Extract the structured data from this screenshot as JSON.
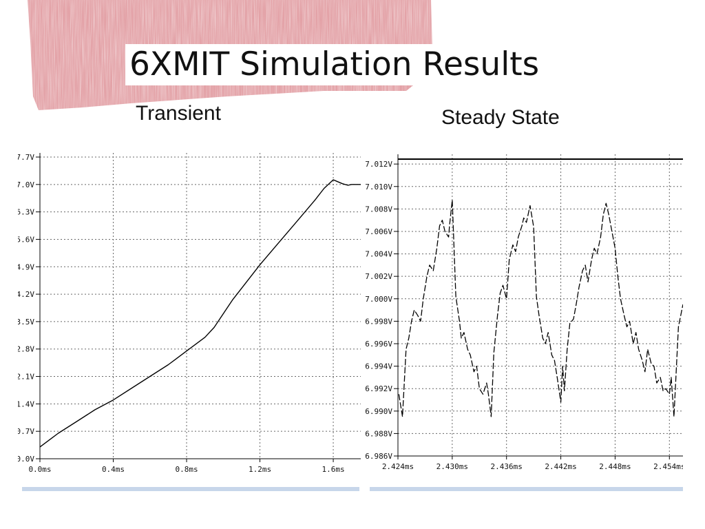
{
  "slide": {
    "title": "6XMIT Simulation Results",
    "subtitles": [
      "Transient",
      "Steady State"
    ],
    "accent_color": "#d65a62",
    "trace_color": "#000000",
    "grid_color": "#666666"
  },
  "chart_data": [
    {
      "type": "line",
      "title": "Transient",
      "xlabel": "",
      "ylabel": "",
      "x_unit": "ms",
      "y_unit": "V",
      "xlim": [
        0,
        1.75
      ],
      "ylim": [
        0,
        7.7
      ],
      "x_ticks": [
        0,
        0.4,
        0.8,
        1.2,
        1.6
      ],
      "x_tick_labels": [
        "0.0ms",
        "0.4ms",
        "0.8ms",
        "1.2ms",
        "1.6ms"
      ],
      "y_ticks": [
        0,
        0.7,
        1.4,
        2.1,
        2.8,
        3.5,
        4.2,
        4.9,
        5.6,
        6.3,
        7.0,
        7.7
      ],
      "y_tick_labels": [
        "0.0V",
        "0.7V",
        "1.4V",
        "2.1V",
        "2.8V",
        "3.5V",
        "4.2V",
        "4.9V",
        "5.6V",
        "6.3V",
        "7.0V",
        "7.7V"
      ],
      "grid": true,
      "series": [
        {
          "x": [
            0.0,
            0.1,
            0.2,
            0.3,
            0.4,
            0.5,
            0.6,
            0.7,
            0.8,
            0.9,
            0.95,
            1.0,
            1.05,
            1.1,
            1.2,
            1.3,
            1.4,
            1.5,
            1.55,
            1.6,
            1.62,
            1.65,
            1.68,
            1.7,
            1.75
          ],
          "y": [
            0.3,
            0.65,
            0.95,
            1.25,
            1.5,
            1.8,
            2.1,
            2.4,
            2.75,
            3.1,
            3.35,
            3.7,
            4.05,
            4.35,
            4.95,
            5.5,
            6.05,
            6.6,
            6.9,
            7.12,
            7.08,
            7.02,
            6.98,
            7.0,
            7.0
          ]
        }
      ]
    },
    {
      "type": "line",
      "title": "Steady State",
      "xlabel": "",
      "ylabel": "",
      "x_unit": "ms",
      "y_unit": "V",
      "xlim": [
        2.424,
        2.4555
      ],
      "ylim": [
        6.986,
        7.0125
      ],
      "x_ticks": [
        2.424,
        2.43,
        2.436,
        2.442,
        2.448,
        2.454
      ],
      "x_tick_labels": [
        "2.424ms",
        "2.430ms",
        "2.436ms",
        "2.442ms",
        "2.448ms",
        "2.454ms"
      ],
      "y_ticks": [
        6.986,
        6.988,
        6.99,
        6.992,
        6.994,
        6.996,
        6.998,
        7.0,
        7.002,
        7.004,
        7.006,
        7.008,
        7.01,
        7.012
      ],
      "y_tick_labels": [
        "6.986V",
        "6.988V",
        "6.990V",
        "6.992V",
        "6.994V",
        "6.996V",
        "6.998V",
        "7.000V",
        "7.002V",
        "7.004V",
        "7.006V",
        "7.008V",
        "7.010V",
        "7.012V"
      ],
      "grid": true,
      "series": [
        {
          "x": [
            2.4241,
            2.4245,
            2.4249,
            2.4252,
            2.4255,
            2.4258,
            2.4262,
            2.4265,
            2.4268,
            2.4272,
            2.4275,
            2.4279,
            2.4283,
            2.4286,
            2.4289,
            2.4292,
            2.4296,
            2.4297,
            2.43,
            2.4304,
            2.4308,
            2.431,
            2.4313,
            2.4317,
            2.432,
            2.4324,
            2.4327,
            2.433,
            2.4334,
            2.4338,
            2.434,
            2.4343,
            2.4346,
            2.435,
            2.4353,
            2.4356,
            2.436,
            2.4363,
            2.4367,
            2.437,
            2.4373,
            2.4377,
            2.4379,
            2.4382,
            2.4386,
            2.439,
            2.4393,
            2.4396,
            2.44,
            2.4403,
            2.4406,
            2.441,
            2.4413,
            2.4416,
            2.442,
            2.4422,
            2.4424,
            2.4427,
            2.443,
            2.4434,
            2.4437,
            2.444,
            2.4444,
            2.4447,
            2.445,
            2.4454,
            2.4457,
            2.446,
            2.4464,
            2.4467,
            2.447,
            2.4473,
            2.4476,
            2.448,
            2.4483,
            2.4486,
            2.449,
            2.4493,
            2.4496,
            2.45,
            2.4503,
            2.4506,
            2.451,
            2.4513,
            2.4516,
            2.452,
            2.4523,
            2.4526,
            2.453,
            2.4533,
            2.4536,
            2.454,
            2.4542,
            2.4545,
            2.455,
            2.4555
          ],
          "y": [
            6.9915,
            6.9895,
            6.9955,
            6.9965,
            6.998,
            6.999,
            6.9985,
            6.998,
            7.0,
            7.002,
            7.003,
            7.0025,
            7.0045,
            7.0065,
            7.007,
            7.006,
            7.0055,
            7.0065,
            7.0088,
            7.0002,
            6.998,
            6.9965,
            6.997,
            6.9955,
            6.995,
            6.9935,
            6.994,
            6.992,
            6.9915,
            6.9925,
            6.9915,
            6.9895,
            6.9952,
            6.9985,
            7.0005,
            7.0012,
            7.0,
            7.0035,
            7.0048,
            7.0042,
            7.0055,
            7.0065,
            7.0072,
            7.0068,
            7.0083,
            7.0064,
            7.0002,
            6.9985,
            6.9965,
            6.996,
            6.997,
            6.995,
            6.9945,
            6.993,
            6.9908,
            6.994,
            6.9918,
            6.9955,
            6.9978,
            6.9982,
            6.9995,
            7.001,
            7.0025,
            7.003,
            7.0015,
            7.0035,
            7.0045,
            7.004,
            7.0055,
            7.0075,
            7.0085,
            7.0075,
            7.0062,
            7.0045,
            7.002,
            7.0,
            6.9985,
            6.9975,
            6.998,
            6.996,
            6.997,
            6.9955,
            6.9945,
            6.9935,
            6.9955,
            6.9942,
            6.994,
            6.9925,
            6.993,
            6.9918,
            6.992,
            6.9915,
            6.993,
            6.9895,
            6.9975,
            6.9995
          ]
        }
      ]
    }
  ]
}
